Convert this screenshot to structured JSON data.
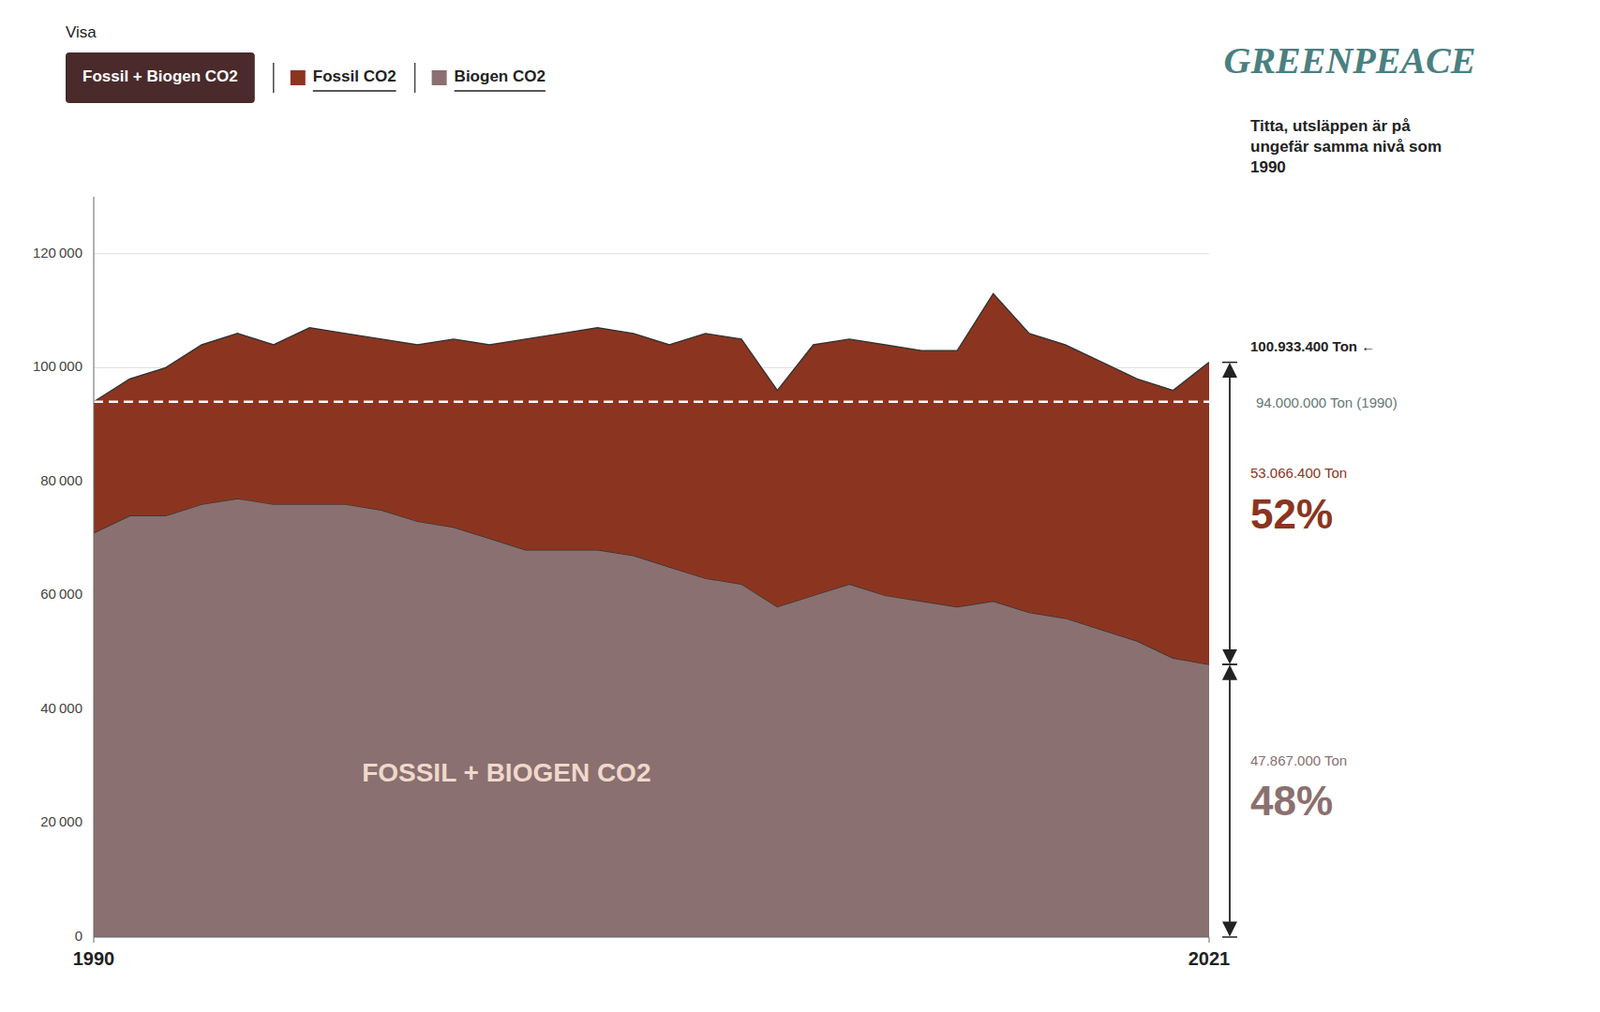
{
  "chart_data": {
    "type": "area",
    "stacked": true,
    "grid": true,
    "legend": "top",
    "legend_title": "Visa",
    "legend_combined": "Fossil + Biogen CO2",
    "area_label": "FOSSIL + BIOGEN CO2",
    "note": "Titta, utsläppen är på\nungefär samma nivå som\n1990",
    "logo": "GREENPEACE",
    "x": [
      1990,
      1991,
      1992,
      1993,
      1994,
      1995,
      1996,
      1997,
      1998,
      1999,
      2000,
      2001,
      2002,
      2003,
      2004,
      2005,
      2006,
      2007,
      2008,
      2009,
      2010,
      2011,
      2012,
      2013,
      2014,
      2015,
      2016,
      2017,
      2018,
      2019,
      2020,
      2021
    ],
    "xlim": [
      1990,
      2021
    ],
    "xticks": [
      1990,
      2021
    ],
    "ylim": [
      0,
      130000
    ],
    "yticks": [
      0,
      {
        "value": 20000,
        "label": "20 000"
      },
      {
        "value": 40000,
        "label": "40 000"
      },
      {
        "value": 60000,
        "label": "60 000"
      },
      {
        "value": 80000,
        "label": "80 000"
      },
      {
        "value": 100000,
        "label": "100 000"
      },
      {
        "value": 120000,
        "label": "120 000"
      }
    ],
    "series": [
      {
        "name": "Biogen CO2",
        "color": "#8a7070",
        "values": [
          71000,
          74000,
          74000,
          76000,
          77000,
          76000,
          76000,
          76000,
          75000,
          73000,
          72000,
          70000,
          68000,
          68000,
          68000,
          67000,
          65000,
          63000,
          62000,
          58000,
          60000,
          62000,
          60000,
          59000,
          58000,
          59000,
          57000,
          56000,
          54000,
          52000,
          49000,
          47867
        ]
      },
      {
        "name": "Fossil CO2",
        "color": "#8B3520",
        "values": [
          23000,
          24000,
          26000,
          28000,
          29000,
          28000,
          31000,
          30000,
          30000,
          31000,
          33000,
          34000,
          37000,
          38000,
          39000,
          39000,
          39000,
          43000,
          43000,
          38000,
          44000,
          43000,
          44000,
          44000,
          45000,
          54000,
          49000,
          48000,
          47000,
          46000,
          47000,
          53066
        ]
      }
    ],
    "reference_line": {
      "y": 94000,
      "label": "94.000.000 Ton (1990)"
    },
    "top_marker": {
      "y": 100933,
      "label": "100.933.400 Ton  ←"
    },
    "brackets": [
      {
        "from": 0,
        "to": 47867,
        "label": "47.867.000 Ton",
        "value_label": "48%"
      },
      {
        "from": 47867,
        "to": 100933,
        "label": "53.066.400 Ton",
        "value_label": "52%"
      }
    ]
  }
}
